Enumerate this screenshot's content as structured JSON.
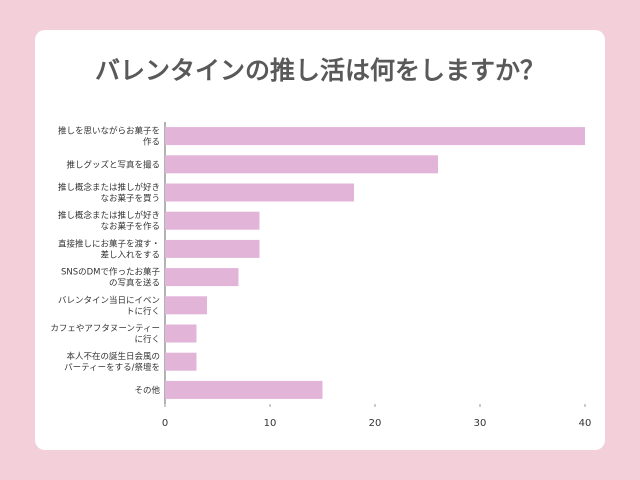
{
  "chart_data": {
    "type": "bar",
    "orientation": "horizontal",
    "title": "バレンタインの推し活は何をしますか？",
    "categories": [
      "推しを思いながらお菓子を\n作る",
      "推しグッズと写真を撮る",
      "推し概念または推しが好き\nなお菓子を買う",
      "推し概念または推しが好き\nなお菓子を作る",
      "直接推しにお菓子を渡す・\n差し入れをする",
      "SNSのDMで作ったお菓子\nの写真を送る",
      "バレンタイン当日にイベン\nトに行く",
      "カフェやアフタヌーンティー\nに行く",
      "本人不在の誕生日会風の\nパーティーをする/祭壇を",
      "その他"
    ],
    "values": [
      40,
      26,
      18,
      9,
      9,
      7,
      4,
      3,
      3,
      15
    ],
    "color": "#e2b4d8",
    "xlim": [
      0,
      40
    ],
    "xticks": [
      0,
      10,
      20,
      30,
      40
    ],
    "grid": false
  }
}
